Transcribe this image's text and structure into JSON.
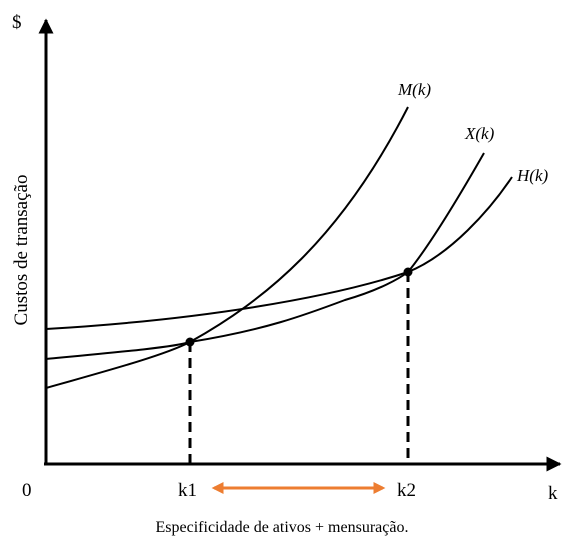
{
  "axes": {
    "y_symbol": "$",
    "origin": "0",
    "x_symbol": "k",
    "y_title": "Custos de transação"
  },
  "curves": {
    "m_label": "M(k)",
    "x_label": "X(k)",
    "h_label": "H(k)"
  },
  "points": {
    "k1_label": "k1",
    "k2_label": "k2"
  },
  "caption": "Especificidade de ativos + mensuração.",
  "colors": {
    "ink": "#000000",
    "arrow": "#ED7D31"
  }
}
